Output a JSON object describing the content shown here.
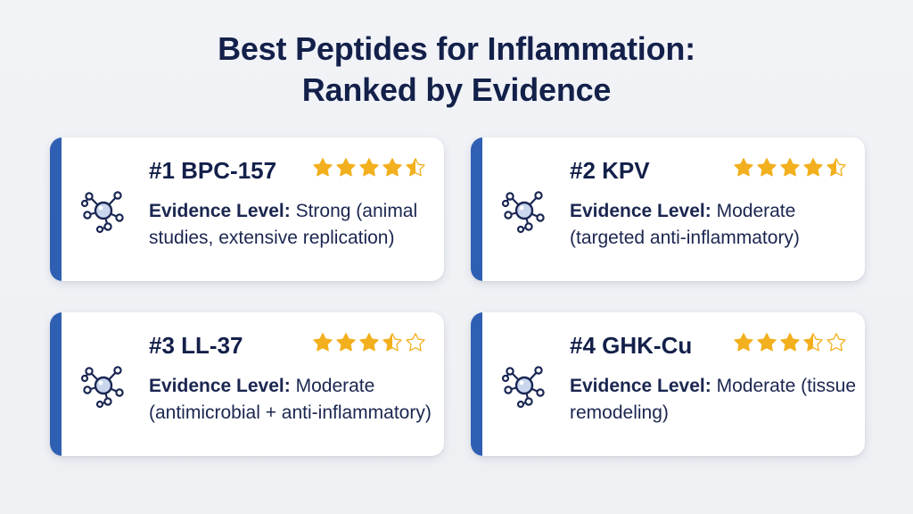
{
  "title": {
    "line1": "Best Peptides for Inflammation:",
    "line2": "Ranked by Evidence"
  },
  "colors": {
    "accent": "#2f5fb3",
    "star": "#f2b01e",
    "text": "#13204a",
    "icon": "#1a2753",
    "icon_bubble": "#c9d6ee"
  },
  "icon_name": "molecule-icon",
  "cards": [
    {
      "name": "#1 BPC-157",
      "rating": 4.5,
      "evidence_label": "Evidence Level:",
      "evidence_text": "Strong (animal studies, extensive replication)"
    },
    {
      "name": "#2 KPV",
      "rating": 4.5,
      "evidence_label": "Evidence Level:",
      "evidence_text": "Moderate (targeted anti-inflammatory)"
    },
    {
      "name": "#3 LL-37",
      "rating": 3.5,
      "evidence_label": "Evidence Level:",
      "evidence_text": "Moderate (antimicrobial + anti-inflammatory)"
    },
    {
      "name": "#4 GHK-Cu",
      "rating": 3.5,
      "evidence_label": "Evidence Level:",
      "evidence_text": "Moderate (tissue remodeling)"
    }
  ]
}
